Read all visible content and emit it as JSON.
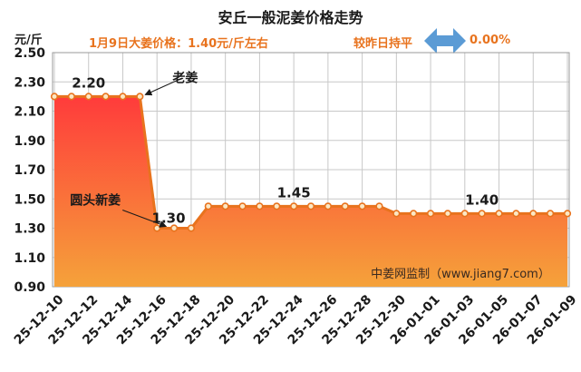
{
  "chart_data": {
    "type": "area",
    "title": "安丘一般泥姜价格走势",
    "subtitle": "1月9日大姜价格：1.40元/斤左右",
    "change_label": "较昨日持平",
    "change_value": "0.00%",
    "ylabel": "元/斤",
    "ylim": [
      0.9,
      2.5
    ],
    "yticks": [
      "0.90",
      "1.10",
      "1.30",
      "1.50",
      "1.70",
      "1.90",
      "2.10",
      "2.30",
      "2.50"
    ],
    "x": [
      "25-12-10",
      "25-12-11",
      "25-12-12",
      "25-12-13",
      "25-12-14",
      "25-12-15",
      "25-12-16",
      "25-12-17",
      "25-12-18",
      "25-12-19",
      "25-12-20",
      "25-12-21",
      "25-12-22",
      "25-12-23",
      "25-12-24",
      "25-12-25",
      "25-12-26",
      "25-12-27",
      "25-12-28",
      "25-12-29",
      "25-12-30",
      "25-12-31",
      "26-01-01",
      "26-01-02",
      "26-01-03",
      "26-01-04",
      "26-01-05",
      "26-01-06",
      "26-01-07",
      "26-01-08",
      "26-01-09"
    ],
    "xticks": [
      "25-12-10",
      "25-12-12",
      "25-12-14",
      "25-12-16",
      "25-12-18",
      "25-12-20",
      "25-12-22",
      "25-12-24",
      "25-12-26",
      "25-12-28",
      "25-12-30",
      "26-01-01",
      "26-01-03",
      "26-01-05",
      "26-01-07",
      "26-01-09"
    ],
    "values": [
      2.2,
      2.2,
      2.2,
      2.2,
      2.2,
      2.2,
      1.3,
      1.3,
      1.3,
      1.45,
      1.45,
      1.45,
      1.45,
      1.45,
      1.45,
      1.45,
      1.45,
      1.45,
      1.45,
      1.45,
      1.4,
      1.4,
      1.4,
      1.4,
      1.4,
      1.4,
      1.4,
      1.4,
      1.4,
      1.4,
      1.4
    ],
    "point_labels": [
      {
        "index": 2,
        "text": "2.20"
      },
      {
        "index": 7,
        "text": "1.30"
      },
      {
        "index": 14,
        "text": "1.45"
      },
      {
        "index": 25,
        "text": "1.40"
      }
    ],
    "annotations": [
      {
        "text": "老姜",
        "index": 5
      },
      {
        "text": "圆头新姜",
        "index": 6
      }
    ],
    "watermark": "中姜网监制（www.jiang7.com）",
    "colors": {
      "line": "#e8731e",
      "marker_fill": "#fbe7c4",
      "area_top": "#ff3b3b",
      "area_bottom": "#f5a23a",
      "grid": "#c8c8c8",
      "arrow": "#5b9bd5",
      "accent_text": "#e8731e"
    }
  }
}
